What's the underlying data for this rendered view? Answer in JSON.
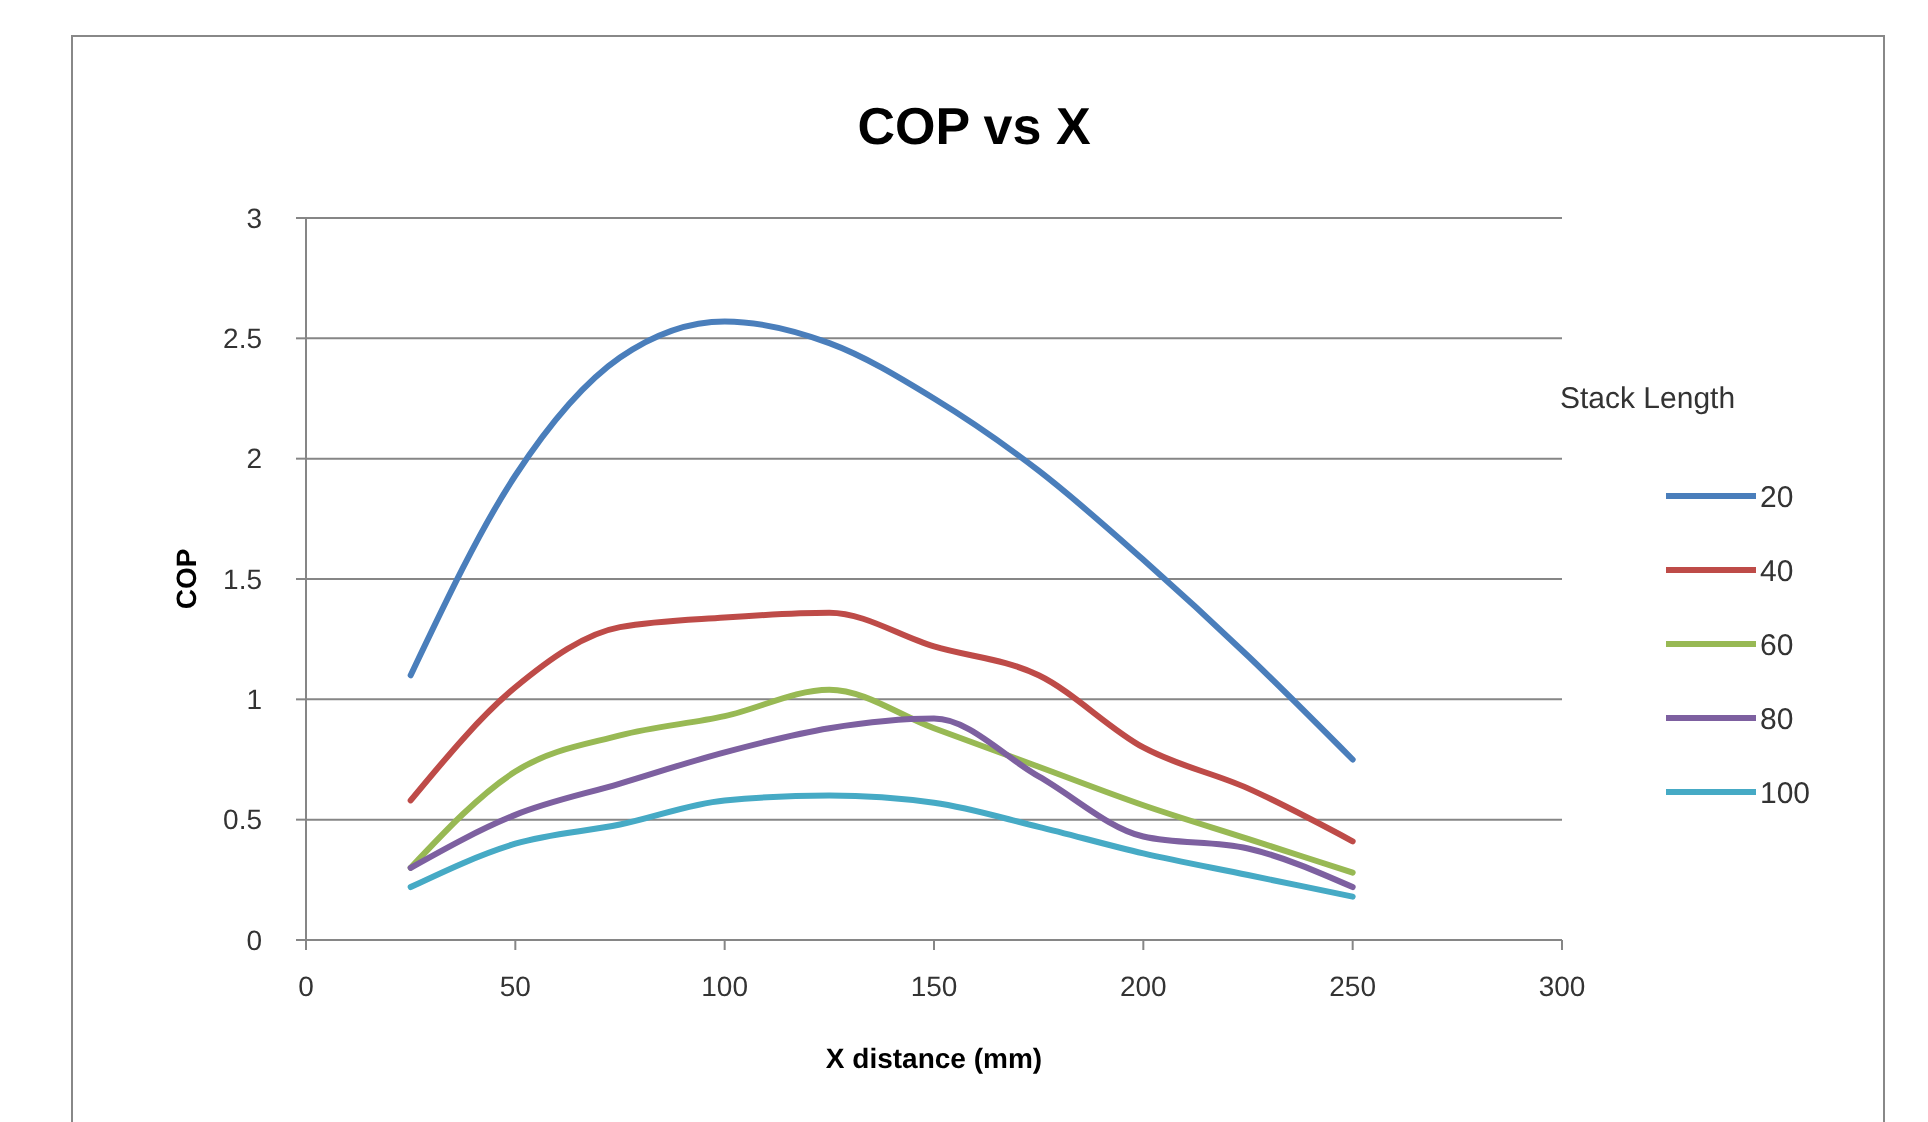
{
  "chart_data": {
    "type": "line",
    "title": "COP vs X",
    "xlabel": "X distance (mm)",
    "ylabel": "COP",
    "legend_title": "Stack Length",
    "x": [
      25,
      50,
      75,
      100,
      125,
      150,
      175,
      200,
      225,
      250
    ],
    "series": [
      {
        "name": "20",
        "color": "#4a7ebb",
        "values": [
          1.1,
          1.93,
          2.42,
          2.57,
          2.48,
          2.25,
          1.95,
          1.58,
          1.18,
          0.75
        ]
      },
      {
        "name": "40",
        "color": "#be4b48",
        "values": [
          0.58,
          1.05,
          1.3,
          1.34,
          1.36,
          1.22,
          1.1,
          0.8,
          0.63,
          0.41
        ]
      },
      {
        "name": "60",
        "color": "#98b954",
        "values": [
          0.3,
          0.7,
          0.85,
          0.93,
          1.04,
          0.88,
          0.72,
          0.56,
          0.42,
          0.28
        ]
      },
      {
        "name": "80",
        "color": "#7d60a0",
        "values": [
          0.3,
          0.52,
          0.65,
          0.78,
          0.88,
          0.92,
          0.68,
          0.43,
          0.38,
          0.22
        ]
      },
      {
        "name": "100",
        "color": "#46aac5",
        "values": [
          0.22,
          0.4,
          0.48,
          0.58,
          0.6,
          0.57,
          0.47,
          0.36,
          0.27,
          0.18
        ]
      }
    ],
    "xlim": [
      0,
      300
    ],
    "xticks": [
      0,
      50,
      100,
      150,
      200,
      250,
      300
    ],
    "ylim": [
      0,
      3
    ],
    "yticks": [
      0,
      0.5,
      1,
      1.5,
      2,
      2.5,
      3
    ],
    "grid": "y",
    "legend": "right",
    "marker": "none",
    "line_style": "solid"
  }
}
